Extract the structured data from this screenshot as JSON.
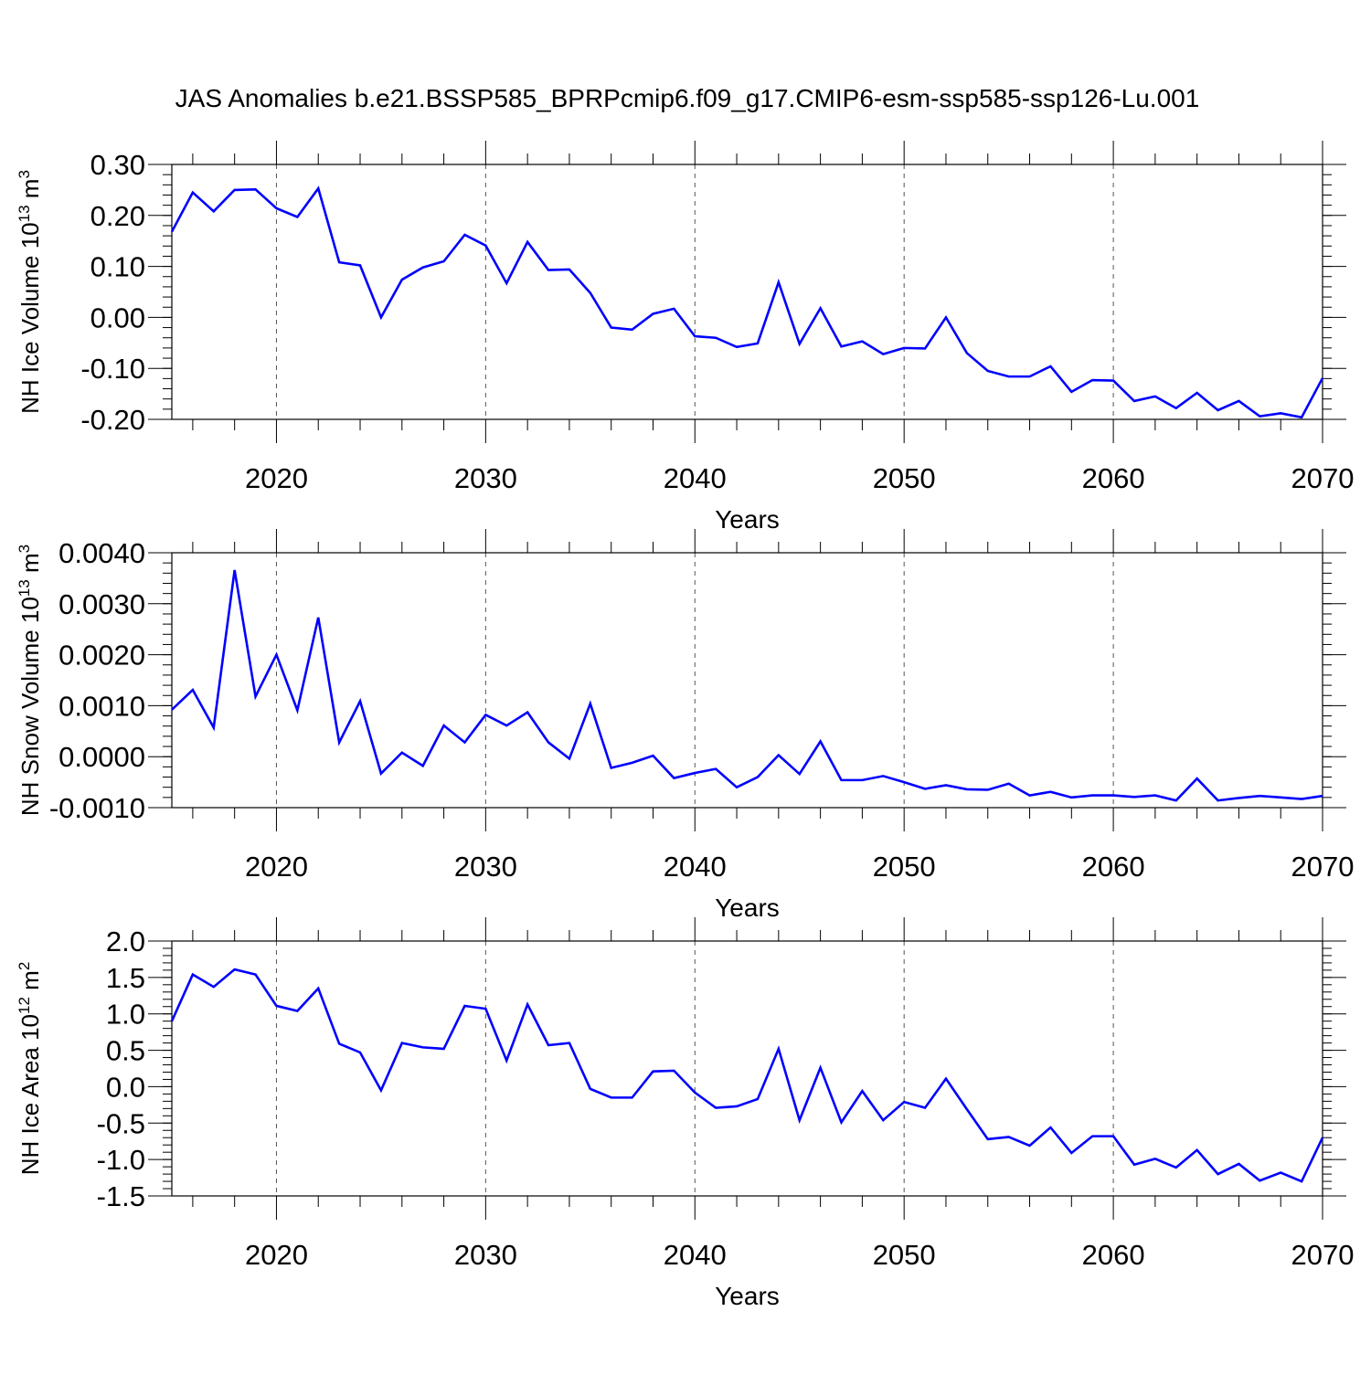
{
  "title": "JAS Anomalies b.e21.BSSP585_BPRPcmip6.f09_g17.CMIP6-esm-ssp585-ssp126-Lu.001",
  "chart_data": [
    {
      "type": "line",
      "panel": "top",
      "xlabel": "Years",
      "ylabel": {
        "text": "NH Ice Volume 10",
        "sup": "13",
        "unit": " m",
        "unit_sup": "3"
      },
      "xlim": [
        2015,
        2070
      ],
      "ylim": [
        -0.2,
        0.3
      ],
      "x_ticks": [
        2020,
        2030,
        2040,
        2050,
        2060,
        2070
      ],
      "x_tick_labels": [
        "2020",
        "2030",
        "2040",
        "2050",
        "2060",
        "2070"
      ],
      "y_ticks": [
        -0.2,
        -0.1,
        0.0,
        0.1,
        0.2,
        0.3
      ],
      "y_tick_labels": [
        "-0.20",
        "-0.10",
        "0.00",
        "0.10",
        "0.20",
        "0.30"
      ],
      "gridlines_x": [
        2020,
        2030,
        2040,
        2050,
        2060
      ],
      "series": [
        {
          "name": "NH Ice Volume anomaly",
          "color": "#0000ff",
          "x": [
            2015,
            2016,
            2017,
            2018,
            2019,
            2020,
            2021,
            2022,
            2023,
            2024,
            2025,
            2026,
            2027,
            2028,
            2029,
            2030,
            2031,
            2032,
            2033,
            2034,
            2035,
            2036,
            2037,
            2038,
            2039,
            2040,
            2041,
            2042,
            2043,
            2044,
            2045,
            2046,
            2047,
            2048,
            2049,
            2050,
            2051,
            2052,
            2053,
            2054,
            2055,
            2056,
            2057,
            2058,
            2059,
            2060,
            2061,
            2062,
            2063,
            2064,
            2065,
            2066,
            2067,
            2068,
            2069,
            2070
          ],
          "values": [
            0.168,
            0.245,
            0.208,
            0.25,
            0.251,
            0.214,
            0.197,
            0.253,
            0.108,
            0.102,
            0.0,
            0.074,
            0.098,
            0.11,
            0.162,
            0.141,
            0.067,
            0.148,
            0.093,
            0.094,
            0.048,
            -0.02,
            -0.024,
            0.007,
            0.017,
            -0.037,
            -0.04,
            -0.058,
            -0.051,
            0.069,
            -0.052,
            0.018,
            -0.057,
            -0.047,
            -0.072,
            -0.06,
            -0.061,
            0.0,
            -0.07,
            -0.105,
            -0.116,
            -0.116,
            -0.096,
            -0.146,
            -0.123,
            -0.124,
            -0.164,
            -0.155,
            -0.178,
            -0.148,
            -0.182,
            -0.164,
            -0.194,
            -0.188,
            -0.196,
            -0.119
          ]
        }
      ]
    },
    {
      "type": "line",
      "panel": "middle",
      "xlabel": "Years",
      "ylabel": {
        "text": "NH Snow Volume 10",
        "sup": "13",
        "unit": " m",
        "unit_sup": "3"
      },
      "xlim": [
        2015,
        2070
      ],
      "ylim": [
        -0.001,
        0.004
      ],
      "x_ticks": [
        2020,
        2030,
        2040,
        2050,
        2060,
        2070
      ],
      "x_tick_labels": [
        "2020",
        "2030",
        "2040",
        "2050",
        "2060",
        "2070"
      ],
      "y_ticks": [
        -0.001,
        0.0,
        0.001,
        0.002,
        0.003,
        0.004
      ],
      "y_tick_labels": [
        "-0.0010",
        "0.0000",
        "0.0010",
        "0.0020",
        "0.0030",
        "0.0040"
      ],
      "gridlines_x": [
        2020,
        2030,
        2040,
        2050,
        2060
      ],
      "series": [
        {
          "name": "NH Snow Volume anomaly",
          "color": "#0000ff",
          "x": [
            2015,
            2016,
            2017,
            2018,
            2019,
            2020,
            2021,
            2022,
            2023,
            2024,
            2025,
            2026,
            2027,
            2028,
            2029,
            2030,
            2031,
            2032,
            2033,
            2034,
            2035,
            2036,
            2037,
            2038,
            2039,
            2040,
            2041,
            2042,
            2043,
            2044,
            2045,
            2046,
            2047,
            2048,
            2049,
            2050,
            2051,
            2052,
            2053,
            2054,
            2055,
            2056,
            2057,
            2058,
            2059,
            2060,
            2061,
            2062,
            2063,
            2064,
            2065,
            2066,
            2067,
            2068,
            2069,
            2070
          ],
          "values": [
            0.00092,
            0.00131,
            0.00057,
            0.00366,
            0.00118,
            0.002,
            0.00091,
            0.00273,
            0.00028,
            0.00109,
            -0.00033,
            8e-05,
            -0.00018,
            0.00061,
            0.00028,
            0.00082,
            0.00061,
            0.00087,
            0.00028,
            -4e-05,
            0.00104,
            -0.00022,
            -0.00012,
            2e-05,
            -0.00042,
            -0.00032,
            -0.00024,
            -0.0006,
            -0.0004,
            3e-05,
            -0.00034,
            0.0003,
            -0.00046,
            -0.00046,
            -0.00038,
            -0.0005,
            -0.00063,
            -0.00056,
            -0.00064,
            -0.00065,
            -0.00053,
            -0.00076,
            -0.00069,
            -0.0008,
            -0.00076,
            -0.00076,
            -0.00079,
            -0.00076,
            -0.00086,
            -0.00043,
            -0.00086,
            -0.00081,
            -0.00077,
            -0.0008,
            -0.00083,
            -0.00077
          ]
        }
      ]
    },
    {
      "type": "line",
      "panel": "bottom",
      "xlabel": "Years",
      "ylabel": {
        "text": "NH Ice Area 10",
        "sup": "12",
        "unit": " m",
        "unit_sup": "2"
      },
      "xlim": [
        2015,
        2070
      ],
      "ylim": [
        -1.5,
        2.0
      ],
      "x_ticks": [
        2020,
        2030,
        2040,
        2050,
        2060,
        2070
      ],
      "x_tick_labels": [
        "2020",
        "2030",
        "2040",
        "2050",
        "2060",
        "2070"
      ],
      "y_ticks": [
        -1.5,
        -1.0,
        -0.5,
        0.0,
        0.5,
        1.0,
        1.5,
        2.0
      ],
      "y_tick_labels": [
        "-1.5",
        "-1.0",
        "-0.5",
        "0.0",
        "0.5",
        "1.0",
        "1.5",
        "2.0"
      ],
      "gridlines_x": [
        2020,
        2030,
        2040,
        2050,
        2060
      ],
      "series": [
        {
          "name": "NH Ice Area anomaly",
          "color": "#0000ff",
          "x": [
            2015,
            2016,
            2017,
            2018,
            2019,
            2020,
            2021,
            2022,
            2023,
            2024,
            2025,
            2026,
            2027,
            2028,
            2029,
            2030,
            2031,
            2032,
            2033,
            2034,
            2035,
            2036,
            2037,
            2038,
            2039,
            2040,
            2041,
            2042,
            2043,
            2044,
            2045,
            2046,
            2047,
            2048,
            2049,
            2050,
            2051,
            2052,
            2053,
            2054,
            2055,
            2056,
            2057,
            2058,
            2059,
            2060,
            2061,
            2062,
            2063,
            2064,
            2065,
            2066,
            2067,
            2068,
            2069,
            2070
          ],
          "values": [
            0.9,
            1.54,
            1.37,
            1.61,
            1.54,
            1.11,
            1.04,
            1.35,
            0.59,
            0.47,
            -0.05,
            0.6,
            0.54,
            0.52,
            1.11,
            1.07,
            0.36,
            1.13,
            0.57,
            0.6,
            -0.03,
            -0.15,
            -0.15,
            0.21,
            0.22,
            -0.08,
            -0.29,
            -0.27,
            -0.17,
            0.52,
            -0.46,
            0.26,
            -0.49,
            -0.06,
            -0.46,
            -0.21,
            -0.29,
            0.11,
            -0.31,
            -0.72,
            -0.69,
            -0.81,
            -0.56,
            -0.91,
            -0.68,
            -0.68,
            -1.07,
            -0.99,
            -1.11,
            -0.87,
            -1.2,
            -1.06,
            -1.29,
            -1.18,
            -1.3,
            -0.7
          ]
        }
      ]
    }
  ]
}
